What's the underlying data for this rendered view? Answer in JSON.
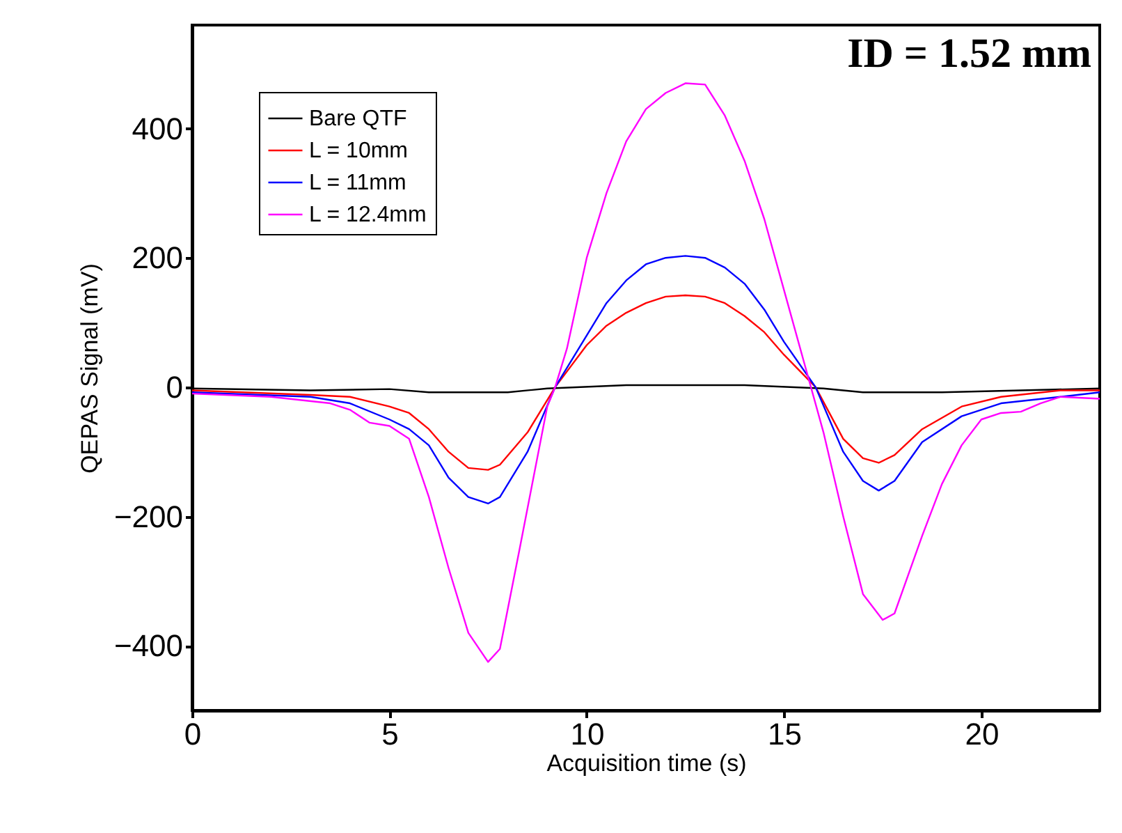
{
  "chart_data": {
    "type": "line",
    "xlabel": "Acquisition time (s)",
    "ylabel": "QEPAS Signal (mV)",
    "annotations": [
      "ID = 1.52 mm"
    ],
    "xlim": [
      0,
      23
    ],
    "xticks": [
      0,
      5,
      10,
      15,
      20
    ],
    "ylim": [
      -500,
      560
    ],
    "yticks": [
      -400,
      -200,
      0,
      200,
      400
    ],
    "grid": false,
    "legend": "top left",
    "line_style": "solid",
    "marker": "none",
    "series": [
      {
        "name": "Bare QTF",
        "color": "#000000",
        "x": [
          0,
          3,
          5,
          6,
          8,
          9,
          11,
          14,
          16,
          17,
          19,
          21,
          23
        ],
        "values": [
          -2,
          -5,
          -3,
          -8,
          -8,
          -2,
          3,
          3,
          -2,
          -8,
          -8,
          -5,
          -2
        ]
      },
      {
        "name": "L = 10mm",
        "color": "#ff0000",
        "x": [
          0,
          3,
          4,
          5,
          5.5,
          6,
          6.5,
          7,
          7.5,
          7.8,
          8.5,
          9.2,
          10,
          10.5,
          11,
          11.5,
          12,
          12.5,
          13,
          13.5,
          14,
          14.5,
          15,
          15.8,
          16.5,
          17,
          17.4,
          17.8,
          18.5,
          19.5,
          20.5,
          22,
          23
        ],
        "values": [
          -5,
          -12,
          -15,
          -30,
          -40,
          -65,
          -100,
          -125,
          -128,
          -120,
          -70,
          0,
          65,
          95,
          115,
          130,
          140,
          142,
          140,
          130,
          110,
          85,
          50,
          0,
          -80,
          -110,
          -117,
          -105,
          -65,
          -30,
          -15,
          -5,
          -5
        ]
      },
      {
        "name": "L = 11mm",
        "color": "#0000ff",
        "x": [
          0,
          3,
          4,
          5,
          5.5,
          6,
          6.5,
          7,
          7.5,
          7.8,
          8.5,
          9.2,
          10,
          10.5,
          11,
          11.5,
          12,
          12.5,
          13,
          13.5,
          14,
          14.5,
          15,
          15.8,
          16.5,
          17,
          17.4,
          17.8,
          18.5,
          19.5,
          20.5,
          22,
          23
        ],
        "values": [
          -8,
          -15,
          -25,
          -50,
          -65,
          -90,
          -140,
          -170,
          -180,
          -170,
          -100,
          0,
          80,
          130,
          165,
          190,
          200,
          203,
          200,
          185,
          160,
          120,
          70,
          0,
          -100,
          -145,
          -160,
          -145,
          -85,
          -45,
          -25,
          -15,
          -8
        ]
      },
      {
        "name": "L = 12.4mm",
        "color": "#ff00ff",
        "x": [
          0,
          2,
          3.5,
          4,
          4.5,
          5,
          5.5,
          6,
          6.5,
          7,
          7.5,
          7.8,
          8.3,
          9,
          9.2,
          9.5,
          10,
          10.5,
          11,
          11.5,
          12,
          12.5,
          13,
          13.5,
          14,
          14.5,
          15,
          15.5,
          16,
          16.5,
          17,
          17.5,
          17.8,
          18.5,
          19,
          19.5,
          20,
          20.5,
          21,
          21.5,
          22,
          23
        ],
        "values": [
          -10,
          -15,
          -25,
          -35,
          -55,
          -60,
          -80,
          -170,
          -280,
          -380,
          -425,
          -405,
          -250,
          -30,
          0,
          60,
          200,
          300,
          380,
          430,
          455,
          470,
          468,
          420,
          350,
          260,
          150,
          40,
          -70,
          -200,
          -320,
          -360,
          -350,
          -230,
          -150,
          -90,
          -50,
          -40,
          -38,
          -25,
          -15,
          -18
        ]
      }
    ]
  }
}
